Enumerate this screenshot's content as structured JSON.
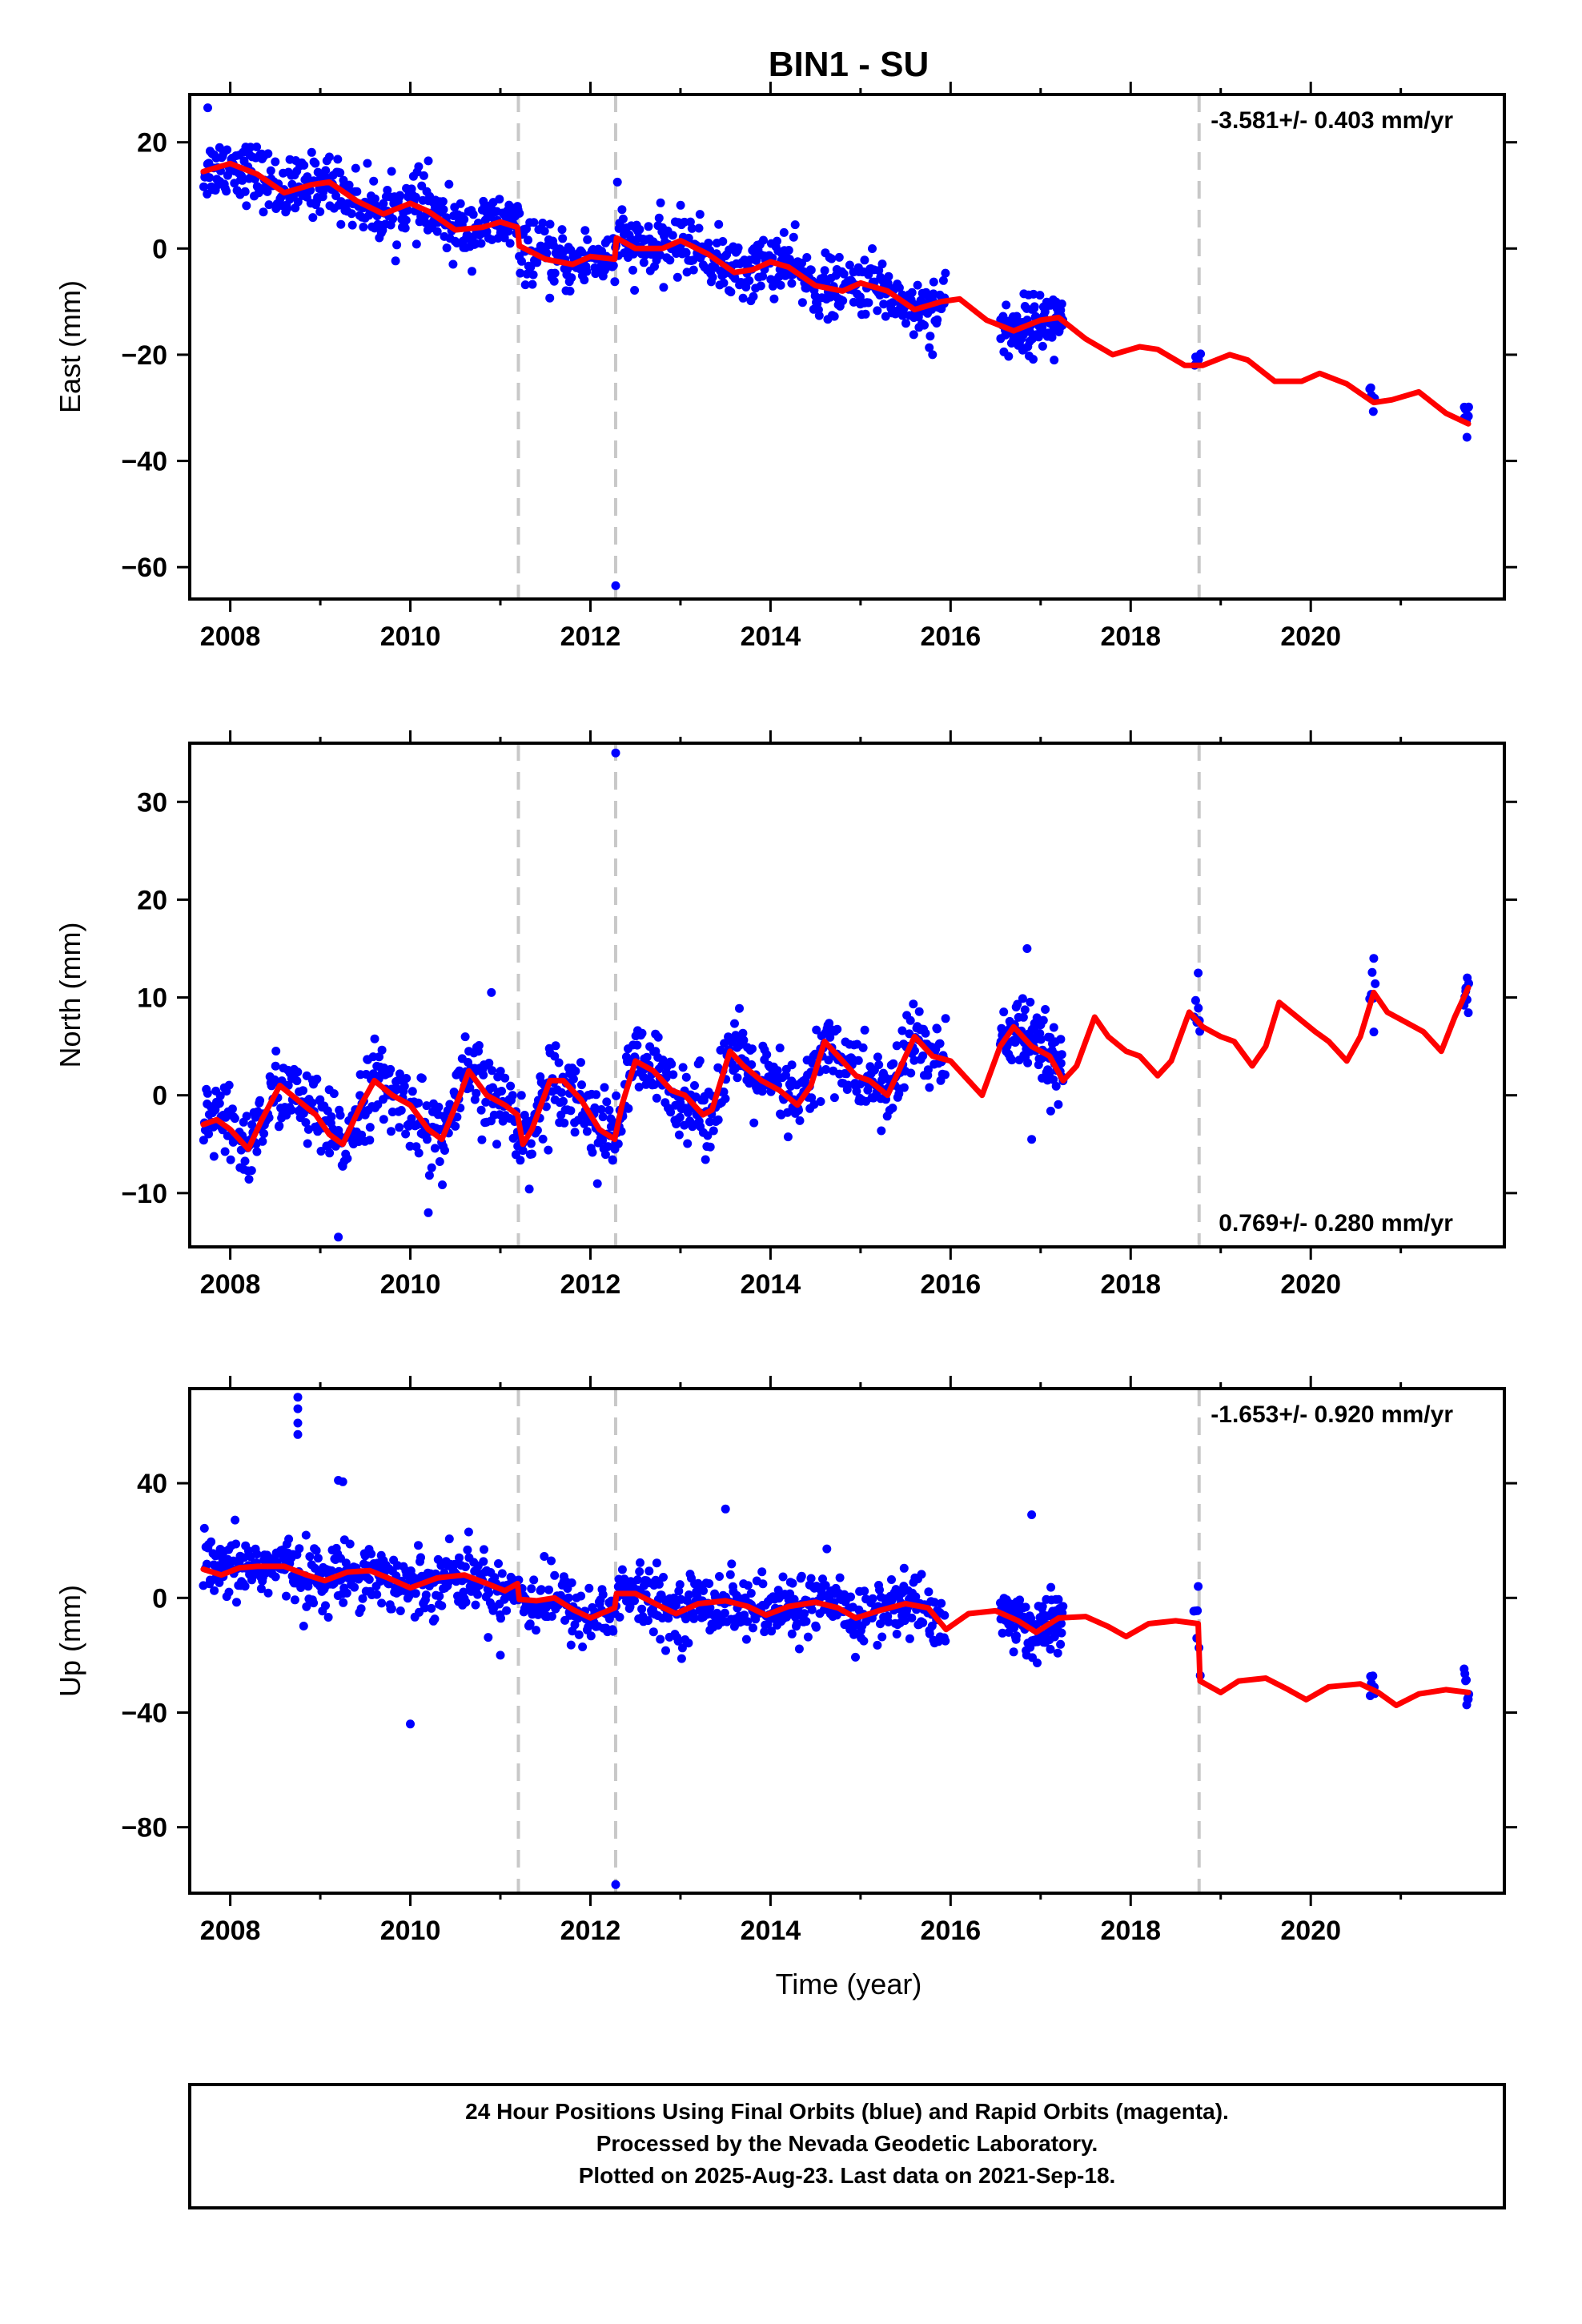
{
  "chart_data": {
    "type": "scatter",
    "title": "BIN1 - SU",
    "xlabel": "Time (year)",
    "x_ticks": [
      "2008",
      "2010",
      "2012",
      "2014",
      "2016",
      "2018",
      "2020"
    ],
    "xlim": [
      2007.55,
      2022.15
    ],
    "colors": {
      "observations": "#0000ff",
      "model": "#ff0000",
      "offsets": "#c8c8c8",
      "frame": "#000000"
    },
    "offset_epochs": [
      2011.2,
      2012.28,
      2018.76
    ],
    "panels": [
      {
        "ylabel": "East (mm)",
        "ylim": [
          -66,
          29
        ],
        "y_ticks": [
          20,
          0,
          -20,
          -40,
          -60
        ],
        "rate_label": "-3.581+/- 0.403 mm/yr",
        "rate_position": "top-right",
        "model": [
          [
            2007.7,
            14.5
          ],
          [
            2008.0,
            16.0
          ],
          [
            2008.3,
            14.0
          ],
          [
            2008.6,
            10.5
          ],
          [
            2008.9,
            12.0
          ],
          [
            2009.1,
            12.5
          ],
          [
            2009.4,
            9.0
          ],
          [
            2009.7,
            6.5
          ],
          [
            2010.0,
            8.5
          ],
          [
            2010.2,
            7.0
          ],
          [
            2010.5,
            3.5
          ],
          [
            2010.8,
            4.0
          ],
          [
            2011.0,
            5.0
          ],
          [
            2011.19,
            4.0
          ],
          [
            2011.21,
            0.5
          ],
          [
            2011.5,
            -2.0
          ],
          [
            2011.8,
            -3.0
          ],
          [
            2012.0,
            -1.5
          ],
          [
            2012.27,
            -2.0
          ],
          [
            2012.29,
            2.0
          ],
          [
            2012.5,
            0.0
          ],
          [
            2012.8,
            0.0
          ],
          [
            2013.0,
            1.5
          ],
          [
            2013.3,
            -1.0
          ],
          [
            2013.6,
            -4.5
          ],
          [
            2013.8,
            -4.0
          ],
          [
            2014.0,
            -2.5
          ],
          [
            2014.2,
            -3.5
          ],
          [
            2014.5,
            -7.0
          ],
          [
            2014.8,
            -8.0
          ],
          [
            2015.0,
            -6.5
          ],
          [
            2015.3,
            -8.0
          ],
          [
            2015.6,
            -11.5
          ],
          [
            2015.9,
            -10.0
          ],
          [
            2016.1,
            -9.5
          ],
          [
            2016.4,
            -13.5
          ],
          [
            2016.7,
            -15.5
          ],
          [
            2017.0,
            -13.5
          ],
          [
            2017.2,
            -13.0
          ],
          [
            2017.5,
            -17.0
          ],
          [
            2017.8,
            -20.0
          ],
          [
            2018.1,
            -18.5
          ],
          [
            2018.3,
            -19.0
          ],
          [
            2018.6,
            -22.0
          ],
          [
            2018.8,
            -22.0
          ],
          [
            2019.1,
            -20.0
          ],
          [
            2019.3,
            -21.0
          ],
          [
            2019.6,
            -25.0
          ],
          [
            2019.9,
            -25.0
          ],
          [
            2020.1,
            -23.5
          ],
          [
            2020.4,
            -25.5
          ],
          [
            2020.7,
            -29.0
          ],
          [
            2020.9,
            -28.5
          ],
          [
            2021.2,
            -27.0
          ],
          [
            2021.5,
            -31.0
          ],
          [
            2021.75,
            -33.0
          ]
        ],
        "observations": {
          "spans": [
            {
              "from": 2007.7,
              "to": 2015.95,
              "count": 900,
              "spread": 2.8
            },
            {
              "from": 2016.55,
              "to": 2017.25,
              "count": 110,
              "spread": 2.6
            },
            {
              "from": 2018.7,
              "to": 2018.78,
              "count": 6,
              "spread": 1.2
            },
            {
              "from": 2020.65,
              "to": 2020.72,
              "count": 6,
              "spread": 1.8
            },
            {
              "from": 2021.7,
              "to": 2021.76,
              "count": 8,
              "spread": 2.0
            }
          ],
          "outliers": [
            [
              2007.75,
              26.5
            ],
            [
              2012.3,
              12.5
            ],
            [
              2010.2,
              16.5
            ],
            [
              2012.28,
              -63.5
            ],
            [
              2014.15,
              3.0
            ],
            [
              2015.8,
              -20.0
            ],
            [
              2017.15,
              -21.0
            ]
          ]
        }
      },
      {
        "ylabel": "North (mm)",
        "ylim": [
          -15.5,
          36
        ],
        "y_ticks": [
          30,
          20,
          10,
          0,
          -10
        ],
        "rate_label": "0.769+/- 0.280 mm/yr",
        "rate_position": "bottom-right",
        "model": [
          [
            2007.7,
            -3.0
          ],
          [
            2007.85,
            -2.5
          ],
          [
            2008.0,
            -3.5
          ],
          [
            2008.2,
            -5.5
          ],
          [
            2008.35,
            -2.5
          ],
          [
            2008.55,
            1.0
          ],
          [
            2008.75,
            -0.5
          ],
          [
            2008.95,
            -2.0
          ],
          [
            2009.1,
            -4.0
          ],
          [
            2009.25,
            -5.0
          ],
          [
            2009.45,
            -1.0
          ],
          [
            2009.6,
            1.5
          ],
          [
            2009.8,
            0.0
          ],
          [
            2010.0,
            -1.0
          ],
          [
            2010.2,
            -3.5
          ],
          [
            2010.35,
            -4.5
          ],
          [
            2010.55,
            0.0
          ],
          [
            2010.65,
            2.5
          ],
          [
            2010.85,
            0.0
          ],
          [
            2011.05,
            -1.0
          ],
          [
            2011.19,
            -2.0
          ],
          [
            2011.25,
            -5.0
          ],
          [
            2011.35,
            -3.5
          ],
          [
            2011.55,
            1.5
          ],
          [
            2011.7,
            1.5
          ],
          [
            2011.9,
            -0.5
          ],
          [
            2012.1,
            -3.5
          ],
          [
            2012.27,
            -4.5
          ],
          [
            2012.35,
            -1.0
          ],
          [
            2012.5,
            3.5
          ],
          [
            2012.7,
            2.5
          ],
          [
            2012.9,
            0.5
          ],
          [
            2013.05,
            0.0
          ],
          [
            2013.25,
            -2.0
          ],
          [
            2013.35,
            -1.5
          ],
          [
            2013.55,
            4.5
          ],
          [
            2013.7,
            3.0
          ],
          [
            2013.9,
            1.5
          ],
          [
            2014.1,
            0.5
          ],
          [
            2014.3,
            -1.0
          ],
          [
            2014.45,
            1.0
          ],
          [
            2014.6,
            5.5
          ],
          [
            2014.75,
            4.0
          ],
          [
            2014.95,
            2.0
          ],
          [
            2015.1,
            1.5
          ],
          [
            2015.3,
            0.0
          ],
          [
            2015.45,
            3.0
          ],
          [
            2015.6,
            6.0
          ],
          [
            2015.8,
            4.0
          ],
          [
            2016.0,
            3.5
          ],
          [
            2016.2,
            1.5
          ],
          [
            2016.35,
            0.0
          ],
          [
            2016.55,
            5.0
          ],
          [
            2016.7,
            7.0
          ],
          [
            2016.9,
            5.0
          ],
          [
            2017.1,
            4.0
          ],
          [
            2017.25,
            1.5
          ],
          [
            2017.4,
            3.0
          ],
          [
            2017.6,
            8.0
          ],
          [
            2017.75,
            6.0
          ],
          [
            2017.95,
            4.5
          ],
          [
            2018.1,
            4.0
          ],
          [
            2018.3,
            2.0
          ],
          [
            2018.45,
            3.5
          ],
          [
            2018.65,
            8.5
          ],
          [
            2018.8,
            7.0
          ],
          [
            2019.0,
            6.0
          ],
          [
            2019.15,
            5.5
          ],
          [
            2019.35,
            3.0
          ],
          [
            2019.5,
            5.0
          ],
          [
            2019.65,
            9.5
          ],
          [
            2019.85,
            8.0
          ],
          [
            2020.05,
            6.5
          ],
          [
            2020.2,
            5.5
          ],
          [
            2020.4,
            3.5
          ],
          [
            2020.55,
            6.0
          ],
          [
            2020.7,
            10.5
          ],
          [
            2020.85,
            8.5
          ],
          [
            2021.05,
            7.5
          ],
          [
            2021.25,
            6.5
          ],
          [
            2021.45,
            4.5
          ],
          [
            2021.6,
            8.0
          ],
          [
            2021.75,
            11.0
          ]
        ],
        "observations": {
          "spans": [
            {
              "from": 2007.7,
              "to": 2015.95,
              "count": 900,
              "spread": 2.0
            },
            {
              "from": 2016.55,
              "to": 2017.25,
              "count": 110,
              "spread": 1.8
            },
            {
              "from": 2018.7,
              "to": 2018.78,
              "count": 6,
              "spread": 1.5
            },
            {
              "from": 2020.65,
              "to": 2020.72,
              "count": 6,
              "spread": 2.0
            },
            {
              "from": 2021.7,
              "to": 2021.76,
              "count": 8,
              "spread": 1.2
            }
          ],
          "outliers": [
            [
              2012.28,
              35.0
            ],
            [
              2016.85,
              15.0
            ],
            [
              2009.2,
              -14.5
            ],
            [
              2010.2,
              -12.0
            ],
            [
              2010.9,
              10.5
            ],
            [
              2018.75,
              12.5
            ],
            [
              2020.7,
              14.0
            ],
            [
              2016.9,
              -4.5
            ]
          ]
        }
      },
      {
        "ylabel": "Up (mm)",
        "ylim": [
          -103,
          73
        ],
        "y_ticks": [
          40,
          0,
          -40,
          -80
        ],
        "rate_label": "-1.653+/- 0.920 mm/yr",
        "rate_position": "top-right",
        "model": [
          [
            2007.7,
            10.0
          ],
          [
            2007.9,
            8.0
          ],
          [
            2008.1,
            10.5
          ],
          [
            2008.3,
            11.0
          ],
          [
            2008.6,
            11.0
          ],
          [
            2008.85,
            8.0
          ],
          [
            2009.05,
            6.0
          ],
          [
            2009.3,
            9.0
          ],
          [
            2009.55,
            9.5
          ],
          [
            2009.75,
            7.0
          ],
          [
            2010.0,
            3.5
          ],
          [
            2010.3,
            7.0
          ],
          [
            2010.6,
            8.0
          ],
          [
            2010.85,
            5.0
          ],
          [
            2011.05,
            2.5
          ],
          [
            2011.19,
            5.0
          ],
          [
            2011.21,
            -0.5
          ],
          [
            2011.4,
            -1.0
          ],
          [
            2011.6,
            0.0
          ],
          [
            2011.8,
            -4.0
          ],
          [
            2012.0,
            -7.0
          ],
          [
            2012.27,
            -3.5
          ],
          [
            2012.29,
            1.5
          ],
          [
            2012.5,
            1.5
          ],
          [
            2012.75,
            -2.5
          ],
          [
            2012.95,
            -5.5
          ],
          [
            2013.2,
            -2.0
          ],
          [
            2013.5,
            -1.0
          ],
          [
            2013.75,
            -3.0
          ],
          [
            2013.95,
            -6.0
          ],
          [
            2014.2,
            -3.0
          ],
          [
            2014.5,
            -1.5
          ],
          [
            2014.75,
            -3.5
          ],
          [
            2014.95,
            -7.0
          ],
          [
            2015.2,
            -4.5
          ],
          [
            2015.5,
            -2.0
          ],
          [
            2015.75,
            -3.5
          ],
          [
            2015.95,
            -11.0
          ],
          [
            2016.2,
            -5.5
          ],
          [
            2016.5,
            -4.5
          ],
          [
            2016.75,
            -8.0
          ],
          [
            2016.95,
            -12.0
          ],
          [
            2017.2,
            -7.0
          ],
          [
            2017.5,
            -6.5
          ],
          [
            2017.75,
            -10.0
          ],
          [
            2017.95,
            -13.5
          ],
          [
            2018.2,
            -9.0
          ],
          [
            2018.5,
            -8.0
          ],
          [
            2018.75,
            -9.0
          ],
          [
            2018.77,
            -29.0
          ],
          [
            2019.0,
            -33.0
          ],
          [
            2019.2,
            -29.0
          ],
          [
            2019.5,
            -28.0
          ],
          [
            2019.75,
            -32.0
          ],
          [
            2019.95,
            -35.5
          ],
          [
            2020.2,
            -31.0
          ],
          [
            2020.55,
            -30.0
          ],
          [
            2020.75,
            -33.0
          ],
          [
            2020.95,
            -37.5
          ],
          [
            2021.2,
            -33.5
          ],
          [
            2021.5,
            -32.0
          ],
          [
            2021.75,
            -33.0
          ]
        ],
        "observations": {
          "spans": [
            {
              "from": 2007.7,
              "to": 2015.95,
              "count": 900,
              "spread": 5.5
            },
            {
              "from": 2016.55,
              "to": 2017.25,
              "count": 110,
              "spread": 5.0
            },
            {
              "from": 2018.7,
              "to": 2018.78,
              "count": 6,
              "spread": 3.0
            },
            {
              "from": 2020.65,
              "to": 2020.72,
              "count": 6,
              "spread": 4.0
            },
            {
              "from": 2021.7,
              "to": 2021.76,
              "count": 8,
              "spread": 3.5
            }
          ],
          "outliers": [
            [
              2008.75,
              70.0
            ],
            [
              2008.75,
              66.0
            ],
            [
              2008.75,
              61.0
            ],
            [
              2008.75,
              57.0
            ],
            [
              2009.2,
              41.0
            ],
            [
              2009.25,
              40.5
            ],
            [
              2010.0,
              -44.0
            ],
            [
              2012.28,
              -100.0
            ],
            [
              2013.5,
              31.0
            ],
            [
              2016.9,
              29.0
            ],
            [
              2011.0,
              -20.0
            ],
            [
              2018.75,
              4.0
            ]
          ]
        }
      }
    ],
    "footer": [
      "24 Hour Positions Using Final Orbits (blue) and Rapid Orbits (magenta).",
      "Processed by the Nevada Geodetic Laboratory.",
      "Plotted on 2025-Aug-23. Last data on 2021-Sep-18."
    ]
  }
}
